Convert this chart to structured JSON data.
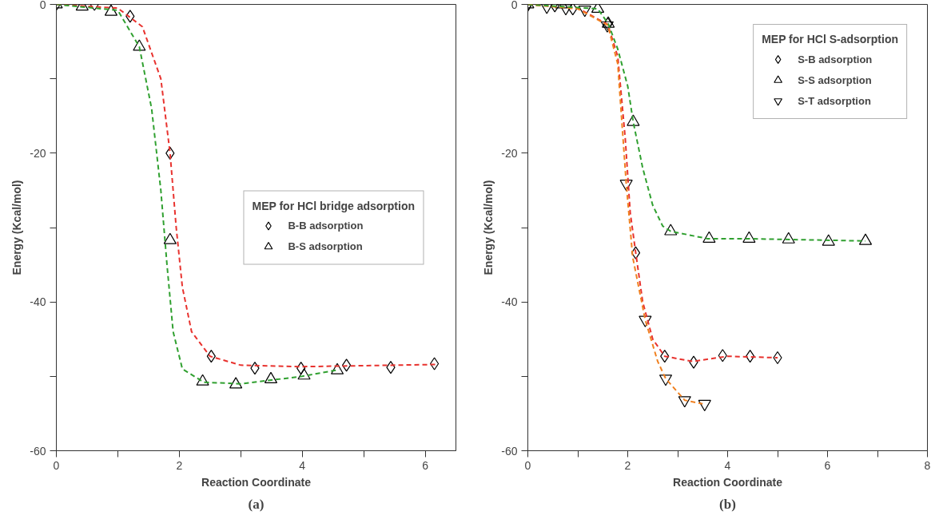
{
  "chart_data": [
    {
      "type": "scatter",
      "title": "(a)",
      "xlabel": "Reaction Coordinate",
      "ylabel": "Energy (Kcal/mol)",
      "legend_title": "MEP for HCl bridge adsorption",
      "legend": "right",
      "xlim": [
        0,
        6.5
      ],
      "xticks": [
        0,
        {
          "value": 1,
          "label": null
        },
        2,
        {
          "value": 3,
          "label": null
        },
        4,
        {
          "value": 5,
          "label": null
        },
        6
      ],
      "ylim": [
        -60,
        0
      ],
      "yticks": [
        -60,
        {
          "value": -50,
          "label": null
        },
        -40,
        {
          "value": -30,
          "label": null
        },
        -20,
        {
          "value": -10,
          "label": null
        },
        0
      ],
      "grid": false,
      "series": [
        {
          "name": "B-B adsorption",
          "color": "#000000",
          "marker": "diamond",
          "x": [
            0,
            0.62,
            1.2,
            1.85,
            2.52,
            3.23,
            3.98,
            4.72,
            5.44,
            6.15
          ],
          "values": [
            0,
            0,
            -1.6,
            -20,
            -47.3,
            -48.9,
            -48.9,
            -48.5,
            -48.8,
            -48.3
          ]
        },
        {
          "name": "B-S adsorption",
          "color": "#000000",
          "marker": "triangle",
          "x": [
            0,
            0.42,
            0.89,
            1.35,
            1.85,
            2.38,
            2.92,
            3.49,
            4.03,
            4.57
          ],
          "values": [
            0,
            -0.3,
            -1,
            -5.7,
            -31.7,
            -50.7,
            -51.1,
            -50.4,
            -49.9,
            -49.2
          ]
        },
        {
          "type": "line",
          "color": "#e8322e",
          "line_style": "dashed",
          "x": [
            0,
            1.0,
            1.4,
            1.7,
            1.85,
            1.95,
            2.05,
            2.2,
            2.5,
            3,
            4,
            6.2
          ],
          "values": [
            0,
            -0.5,
            -3,
            -10,
            -20,
            -30,
            -38,
            -44,
            -47.3,
            -48.5,
            -48.7,
            -48.4
          ]
        },
        {
          "type": "line",
          "color": "#30a030",
          "line_style": "dashed",
          "x": [
            0,
            1.0,
            1.35,
            1.55,
            1.7,
            1.8,
            1.9,
            2.05,
            2.4,
            3,
            4,
            4.6
          ],
          "values": [
            0,
            -0.8,
            -5.7,
            -14,
            -25,
            -35,
            -44,
            -49,
            -50.8,
            -51,
            -50,
            -49.1
          ]
        }
      ]
    },
    {
      "type": "scatter",
      "title": "(b)",
      "xlabel": "Reaction Coordinate",
      "ylabel": "Energy (Kcal/mol)",
      "legend_title": "MEP for HCl S-adsorption",
      "legend": "top right",
      "xlim": [
        0,
        8
      ],
      "xticks": [
        0,
        {
          "value": 1,
          "label": null
        },
        2,
        {
          "value": 3,
          "label": null
        },
        4,
        {
          "value": 5,
          "label": null
        },
        6,
        {
          "value": 7,
          "label": null
        },
        8
      ],
      "ylim": [
        -60,
        0
      ],
      "yticks": [
        -60,
        {
          "value": -50,
          "label": null
        },
        -40,
        {
          "value": -30,
          "label": null
        },
        -20,
        {
          "value": -10,
          "label": null
        },
        0
      ],
      "grid": false,
      "series": [
        {
          "name": "S-B adsorption",
          "color": "#000000",
          "marker": "diamond",
          "x": [
            0,
            0.54,
            0.9,
            1.6,
            2.16,
            2.74,
            3.32,
            3.9,
            4.45,
            5.0
          ],
          "values": [
            0,
            -0.2,
            -0.6,
            -2.6,
            -33.4,
            -47.3,
            -48.1,
            -47.2,
            -47.3,
            -47.5
          ]
        },
        {
          "name": "S-S adsorption",
          "color": "#000000",
          "marker": "triangle",
          "x": [
            0,
            0.67,
            1.4,
            1.61,
            2.11,
            2.86,
            3.63,
            4.43,
            5.22,
            6.02,
            6.76
          ],
          "values": [
            0,
            0,
            -0.6,
            -2.6,
            -15.8,
            -30.5,
            -31.5,
            -31.5,
            -31.6,
            -31.9,
            -31.8
          ]
        },
        {
          "name": "S-T adsorption",
          "color": "#000000",
          "x": [
            0,
            0.38,
            0.76,
            1.14,
            1.59,
            1.97,
            2.35,
            2.76,
            3.14,
            3.54
          ],
          "values": [
            0,
            -0.3,
            -0.5,
            -0.7,
            -2.8,
            -24.1,
            -42.4,
            -50.3,
            -53.2,
            -53.7
          ]
        },
        {
          "type": "line",
          "color": "#e8322e",
          "line_style": "dashed",
          "x": [
            0,
            1,
            1.6,
            1.8,
            1.95,
            2.05,
            2.16,
            2.3,
            2.5,
            2.74,
            3.3,
            4,
            5
          ],
          "values": [
            0,
            -0.5,
            -2.7,
            -7,
            -18,
            -28,
            -33.4,
            -40,
            -45,
            -47.3,
            -48,
            -47.3,
            -47.5
          ]
        },
        {
          "type": "line",
          "color": "#f08020",
          "line_style": "dashed",
          "x": [
            0,
            1,
            1.6,
            1.8,
            1.97,
            2.1,
            2.35,
            2.6,
            2.76,
            3.14,
            3.5
          ],
          "values": [
            0,
            -0.6,
            -2.8,
            -8,
            -24.1,
            -34,
            -42.4,
            -48,
            -50.3,
            -53.2,
            -53.7
          ]
        },
        {
          "type": "line",
          "color": "#30a030",
          "line_style": "dashed",
          "x": [
            0,
            1.4,
            1.61,
            1.8,
            2.0,
            2.11,
            2.3,
            2.5,
            2.7,
            2.86,
            3.6,
            4.4,
            6.76
          ],
          "values": [
            0,
            -0.6,
            -2.6,
            -6,
            -11,
            -15.8,
            -22,
            -27,
            -29.8,
            -30.5,
            -31.5,
            -31.5,
            -31.8
          ]
        }
      ]
    }
  ]
}
